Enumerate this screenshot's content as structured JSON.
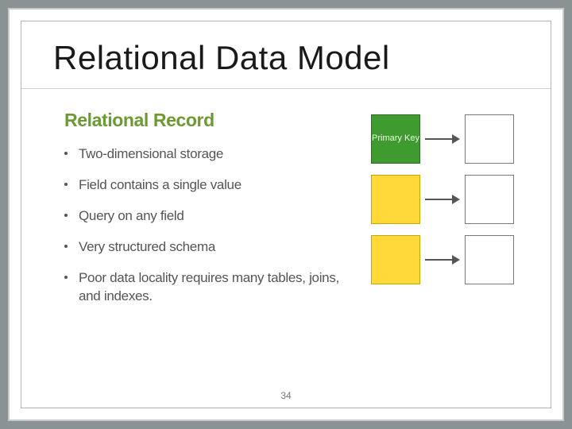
{
  "slide": {
    "title": "Relational Data Model",
    "subheading": "Relational Record",
    "subheading_color": "#6b9a33",
    "bullets": [
      "Two-dimensional storage",
      "Field contains a single value",
      "Query on any field",
      "Very structured schema",
      "Poor data locality requires many tables, joins, and indexes."
    ],
    "bullet_color": "#555555",
    "page_number": "34"
  },
  "diagram": {
    "type": "flowchart",
    "arrow_color": "#555555",
    "rows": [
      {
        "left": {
          "label": "Primary Key",
          "fill": "#3f9a2f",
          "text_color": "#e8ffe0",
          "border": "#2f6b22"
        },
        "right": {
          "label": "",
          "fill": "#ffffff",
          "text_color": "#000000",
          "border": "#7a7a7a"
        }
      },
      {
        "left": {
          "label": "",
          "fill": "#ffd83a",
          "text_color": "#000000",
          "border": "#c9a500"
        },
        "right": {
          "label": "",
          "fill": "#ffffff",
          "text_color": "#000000",
          "border": "#7a7a7a"
        }
      },
      {
        "left": {
          "label": "",
          "fill": "#ffd83a",
          "text_color": "#000000",
          "border": "#c9a500"
        },
        "right": {
          "label": "",
          "fill": "#ffffff",
          "text_color": "#000000",
          "border": "#7a7a7a"
        }
      }
    ]
  },
  "frame": {
    "outer_bg": "#8a9294",
    "slide_bg": "#ffffff",
    "outer_border": "#c9c9c9",
    "inner_border": "#b5b5b5",
    "divider": "#cfcfcf"
  }
}
